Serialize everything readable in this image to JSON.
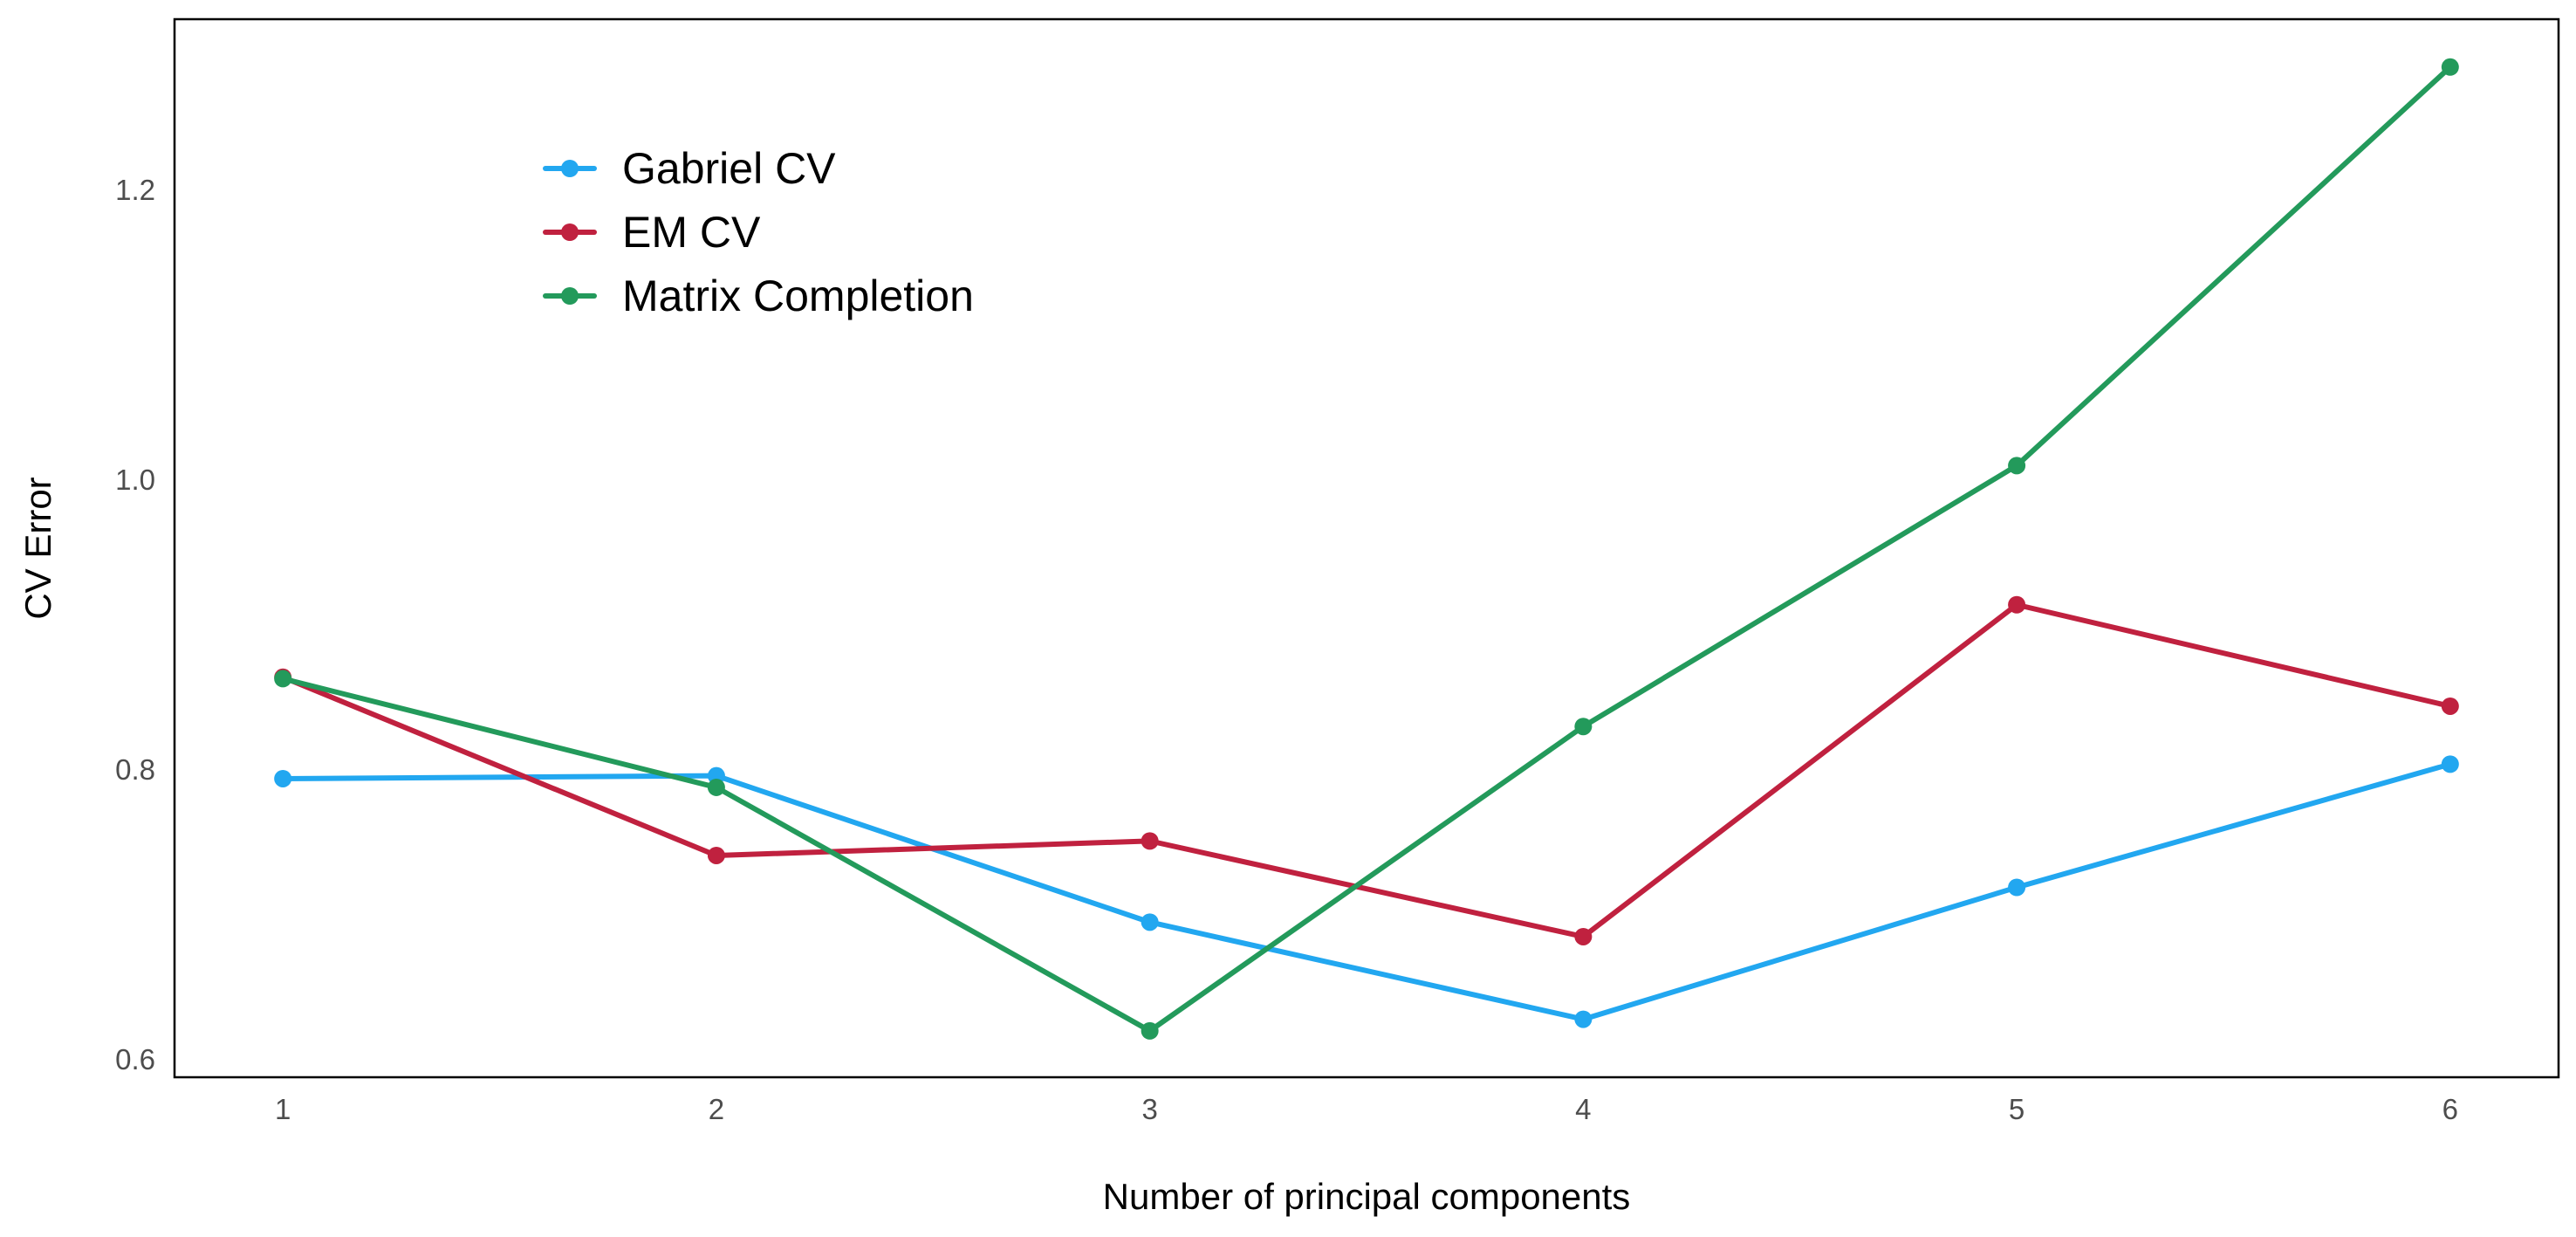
{
  "chart_data": {
    "type": "line",
    "title": "",
    "xlabel": "Number of principal components",
    "ylabel": "CV Error",
    "x": [
      1,
      2,
      3,
      4,
      5,
      6
    ],
    "xlim": [
      0.75,
      6.25
    ],
    "ylim": [
      0.588,
      1.318
    ],
    "xticks": [
      1,
      2,
      3,
      4,
      5,
      6
    ],
    "yticks": [
      0.6,
      0.8,
      1.0,
      1.2
    ],
    "ytick_labels": [
      "0.6",
      "0.8",
      "1.0",
      "1.2"
    ],
    "grid": false,
    "legend_position": "top-left",
    "series": [
      {
        "name": "Gabriel CV",
        "color": "#22a7f0",
        "values": [
          0.794,
          0.796,
          0.695,
          0.628,
          0.719,
          0.804
        ]
      },
      {
        "name": "EM CV",
        "color": "#c0213f",
        "values": [
          0.864,
          0.741,
          0.751,
          0.685,
          0.914,
          0.844
        ]
      },
      {
        "name": "Matrix Completion",
        "color": "#239a5b",
        "values": [
          0.863,
          0.788,
          0.62,
          0.83,
          1.01,
          1.285
        ]
      }
    ]
  }
}
